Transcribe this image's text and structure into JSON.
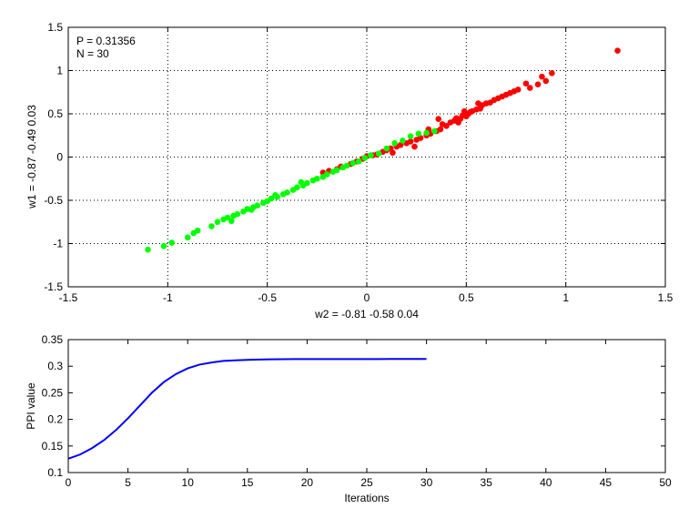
{
  "chart_data": [
    {
      "type": "scatter",
      "title": "",
      "xlabel": "w2 = -0.81  -0.58  0.04",
      "ylabel": "w1 = -0.87  -0.49  0.03",
      "xlim": [
        -1.5,
        1.5
      ],
      "ylim": [
        -1.5,
        1.5
      ],
      "xticks": [
        -1.5,
        -1,
        -0.5,
        0,
        0.5,
        1,
        1.5
      ],
      "yticks": [
        -1.5,
        -1,
        -0.5,
        0,
        0.5,
        1,
        1.5
      ],
      "xtick_labels": [
        "-1.5",
        "-1",
        "-0.5",
        "0",
        "0.5",
        "1",
        "1.5"
      ],
      "ytick_labels": [
        "-1.5",
        "-1",
        "-0.5",
        "0",
        "0.5",
        "1",
        "1.5"
      ],
      "grid": true,
      "annotations": [
        "P = 0.31356",
        "N = 30"
      ],
      "series": [
        {
          "color": "#ff0000",
          "points": [
            [
              -0.22,
              -0.18
            ],
            [
              -0.19,
              -0.16
            ],
            [
              -0.15,
              -0.14
            ],
            [
              -0.13,
              -0.11
            ],
            [
              -0.08,
              -0.08
            ],
            [
              -0.05,
              -0.05
            ],
            [
              -0.02,
              -0.02
            ],
            [
              0.0,
              0.01
            ],
            [
              0.03,
              0.02
            ],
            [
              0.05,
              0.03
            ],
            [
              0.08,
              0.06
            ],
            [
              0.1,
              0.08
            ],
            [
              0.12,
              0.1
            ],
            [
              0.15,
              0.12
            ],
            [
              0.17,
              0.14
            ],
            [
              0.2,
              0.16
            ],
            [
              0.22,
              0.18
            ],
            [
              0.25,
              0.2
            ],
            [
              0.27,
              0.22
            ],
            [
              0.3,
              0.25
            ],
            [
              0.32,
              0.27
            ],
            [
              0.35,
              0.3
            ],
            [
              0.37,
              0.32
            ],
            [
              0.38,
              0.38
            ],
            [
              0.4,
              0.36
            ],
            [
              0.42,
              0.4
            ],
            [
              0.44,
              0.42
            ],
            [
              0.45,
              0.45
            ],
            [
              0.47,
              0.44
            ],
            [
              0.48,
              0.48
            ],
            [
              0.5,
              0.47
            ],
            [
              0.51,
              0.5
            ],
            [
              0.52,
              0.52
            ],
            [
              0.53,
              0.53
            ],
            [
              0.55,
              0.55
            ],
            [
              0.57,
              0.56
            ],
            [
              0.58,
              0.6
            ],
            [
              0.6,
              0.62
            ],
            [
              0.62,
              0.63
            ],
            [
              0.64,
              0.66
            ],
            [
              0.66,
              0.68
            ],
            [
              0.68,
              0.7
            ],
            [
              0.7,
              0.72
            ],
            [
              0.72,
              0.74
            ],
            [
              0.74,
              0.76
            ],
            [
              0.76,
              0.78
            ],
            [
              0.8,
              0.85
            ],
            [
              0.82,
              0.8
            ],
            [
              0.86,
              0.84
            ],
            [
              0.88,
              0.93
            ],
            [
              0.9,
              0.88
            ],
            [
              0.93,
              0.97
            ],
            [
              1.26,
              1.23
            ],
            [
              0.13,
              0.05
            ],
            [
              0.24,
              0.12
            ],
            [
              0.31,
              0.32
            ],
            [
              0.36,
              0.44
            ],
            [
              0.46,
              0.4
            ],
            [
              0.56,
              0.62
            ],
            [
              0.49,
              0.53
            ]
          ]
        },
        {
          "color": "#00ff00",
          "points": [
            [
              -1.1,
              -1.07
            ],
            [
              -1.02,
              -1.03
            ],
            [
              -0.98,
              -0.99
            ],
            [
              -0.9,
              -0.93
            ],
            [
              -0.87,
              -0.88
            ],
            [
              -0.85,
              -0.85
            ],
            [
              -0.78,
              -0.8
            ],
            [
              -0.75,
              -0.75
            ],
            [
              -0.72,
              -0.72
            ],
            [
              -0.7,
              -0.7
            ],
            [
              -0.67,
              -0.68
            ],
            [
              -0.65,
              -0.66
            ],
            [
              -0.62,
              -0.63
            ],
            [
              -0.6,
              -0.6
            ],
            [
              -0.57,
              -0.58
            ],
            [
              -0.55,
              -0.56
            ],
            [
              -0.52,
              -0.53
            ],
            [
              -0.5,
              -0.51
            ],
            [
              -0.48,
              -0.48
            ],
            [
              -0.45,
              -0.46
            ],
            [
              -0.42,
              -0.43
            ],
            [
              -0.4,
              -0.41
            ],
            [
              -0.37,
              -0.38
            ],
            [
              -0.35,
              -0.35
            ],
            [
              -0.32,
              -0.33
            ],
            [
              -0.3,
              -0.3
            ],
            [
              -0.27,
              -0.27
            ],
            [
              -0.25,
              -0.25
            ],
            [
              -0.22,
              -0.23
            ],
            [
              -0.2,
              -0.2
            ],
            [
              -0.17,
              -0.17
            ],
            [
              -0.15,
              -0.15
            ],
            [
              -0.12,
              -0.12
            ],
            [
              -0.1,
              -0.1
            ],
            [
              -0.07,
              -0.07
            ],
            [
              -0.04,
              -0.05
            ],
            [
              -0.01,
              -0.01
            ],
            [
              0.02,
              0.02
            ],
            [
              0.06,
              0.04
            ],
            [
              0.1,
              0.1
            ],
            [
              0.14,
              0.16
            ],
            [
              0.18,
              0.19
            ],
            [
              0.22,
              0.24
            ],
            [
              0.26,
              0.27
            ],
            [
              0.3,
              0.28
            ],
            [
              0.34,
              0.3
            ],
            [
              -0.68,
              -0.74
            ],
            [
              -0.58,
              -0.61
            ],
            [
              -0.46,
              -0.44
            ],
            [
              -0.33,
              -0.29
            ]
          ]
        }
      ]
    },
    {
      "type": "line",
      "title": "",
      "xlabel": "Iterations",
      "ylabel": "PPI value",
      "xlim": [
        0,
        50
      ],
      "ylim": [
        0.1,
        0.35
      ],
      "xticks": [
        0,
        5,
        10,
        15,
        20,
        25,
        30,
        35,
        40,
        45,
        50
      ],
      "yticks": [
        0.1,
        0.15,
        0.2,
        0.25,
        0.3,
        0.35
      ],
      "xtick_labels": [
        "0",
        "5",
        "10",
        "15",
        "20",
        "25",
        "30",
        "35",
        "40",
        "45",
        "50"
      ],
      "ytick_labels": [
        "0.1",
        "0.15",
        "0.2",
        "0.25",
        "0.3",
        "0.35"
      ],
      "grid": false,
      "series": [
        {
          "color": "#0000ff",
          "x": [
            0,
            1,
            2,
            3,
            4,
            5,
            6,
            7,
            8,
            9,
            10,
            11,
            12,
            13,
            14,
            15,
            16,
            17,
            18,
            19,
            20,
            21,
            22,
            23,
            24,
            25,
            26,
            27,
            28,
            29,
            30
          ],
          "y": [
            0.126,
            0.134,
            0.146,
            0.161,
            0.18,
            0.202,
            0.226,
            0.25,
            0.27,
            0.285,
            0.296,
            0.303,
            0.307,
            0.31,
            0.311,
            0.312,
            0.3125,
            0.313,
            0.3132,
            0.3133,
            0.3134,
            0.3134,
            0.3135,
            0.3135,
            0.3135,
            0.3135,
            0.3135,
            0.3136,
            0.3136,
            0.3136,
            0.3136
          ]
        }
      ]
    }
  ]
}
